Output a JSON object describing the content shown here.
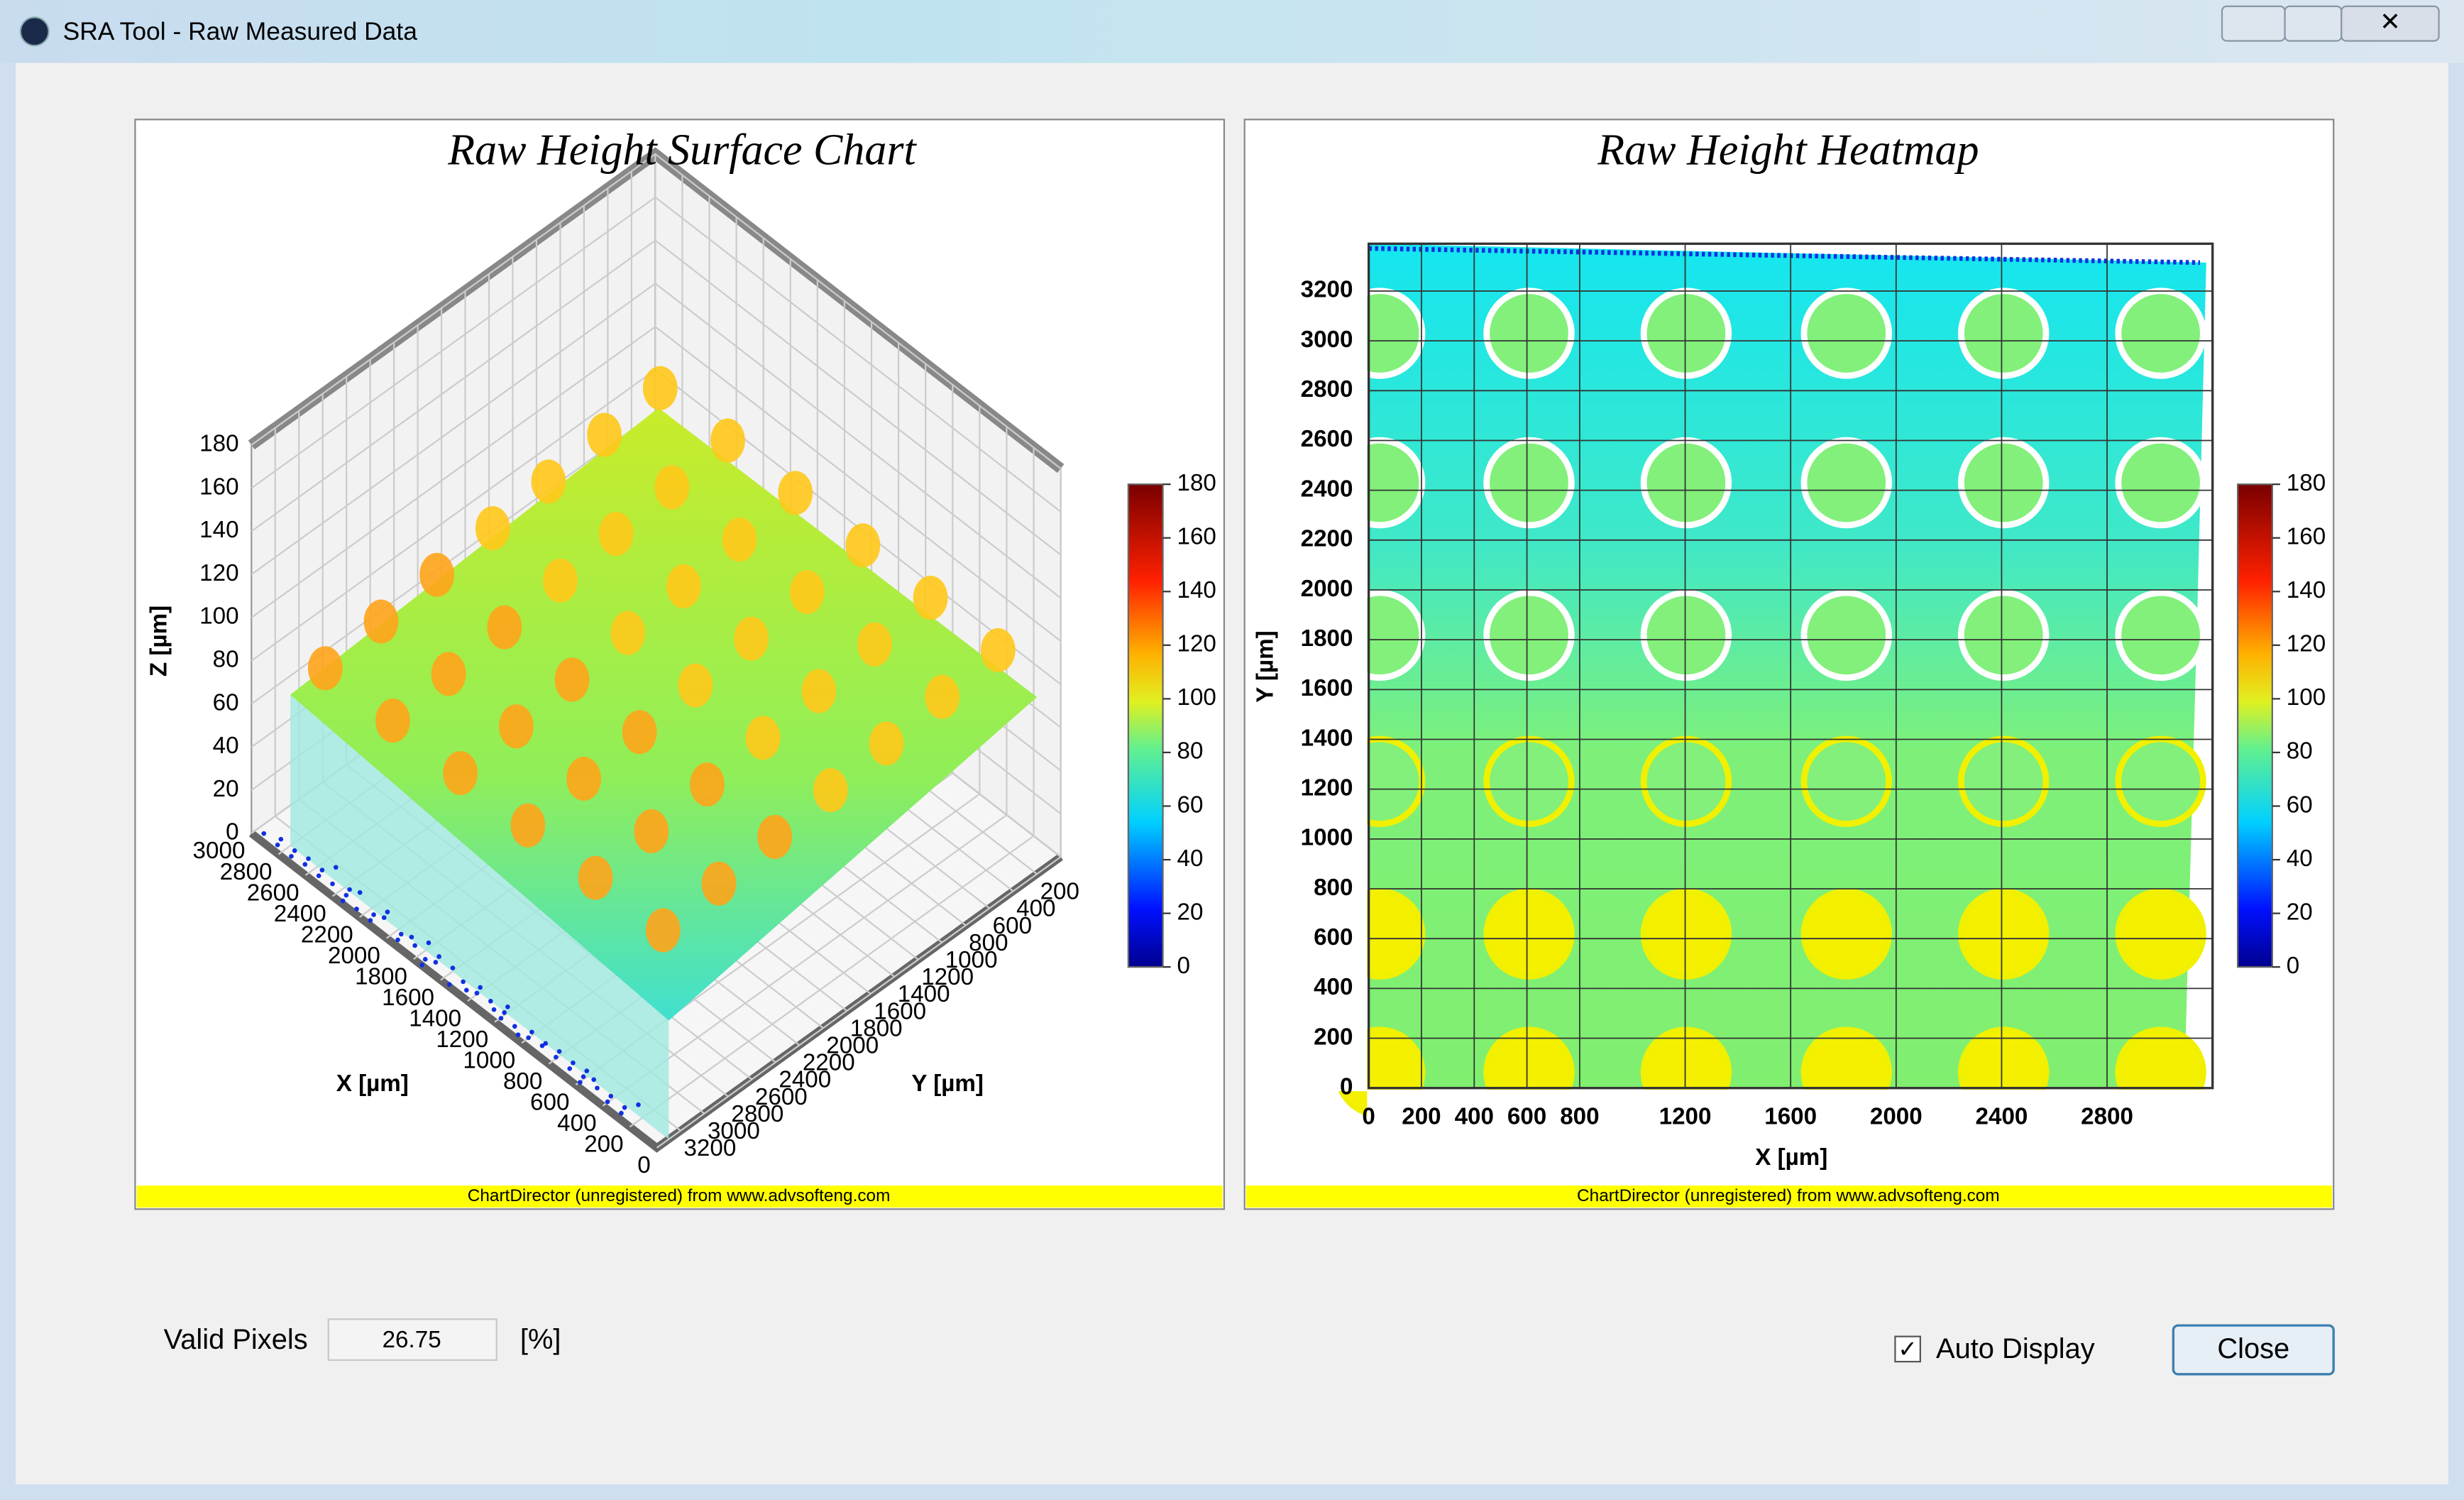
{
  "window": {
    "title": "SRA Tool - Raw Measured Data"
  },
  "surface_chart": {
    "title": "Raw Height Surface Chart",
    "x_label": "X [µm]",
    "y_label": "Y [µm]",
    "z_label": "Z [µm]",
    "xlim": [
      0,
      3000
    ],
    "ylim": [
      0,
      3400
    ],
    "zlim": [
      0,
      180
    ],
    "xticks": [
      0,
      200,
      400,
      600,
      800,
      1000,
      1200,
      1400,
      1600,
      1800,
      2000,
      2200,
      2400,
      2600,
      2800,
      3000
    ],
    "yticks": [
      200,
      400,
      600,
      800,
      1000,
      1200,
      1400,
      1600,
      1800,
      2000,
      2200,
      2400,
      2600,
      2800,
      3000,
      3200
    ],
    "zticks": [
      0,
      20,
      40,
      60,
      80,
      100,
      120,
      140,
      160,
      180
    ],
    "colorbar_lim": [
      0,
      180
    ],
    "colorbar_ticks": [
      0,
      20,
      40,
      60,
      80,
      100,
      120,
      140,
      160,
      180
    ],
    "footer": "ChartDirector (unregistered) from www.advsofteng.com"
  },
  "heatmap": {
    "title": "Raw Height Heatmap",
    "x_label": "X [µm]",
    "y_label": "Y [µm]",
    "xlim": [
      0,
      3200
    ],
    "ylim": [
      0,
      3390
    ],
    "xticks": [
      0,
      200,
      400,
      600,
      800,
      1200,
      1600,
      2000,
      2400,
      2800
    ],
    "yticks": [
      0,
      200,
      400,
      600,
      800,
      1000,
      1200,
      1400,
      1600,
      1800,
      2000,
      2200,
      2400,
      2600,
      2800,
      3000,
      3200
    ],
    "colorbar_lim": [
      0,
      180
    ],
    "colorbar_ticks": [
      0,
      20,
      40,
      60,
      80,
      100,
      120,
      140,
      160,
      180
    ],
    "footer": "ChartDirector (unregistered) from www.advsofteng.com"
  },
  "controls": {
    "valid_pixels_label": "Valid Pixels",
    "valid_pixels_value": "26.75",
    "unit": "[%]",
    "auto_display": "Auto Display",
    "close": "Close"
  }
}
